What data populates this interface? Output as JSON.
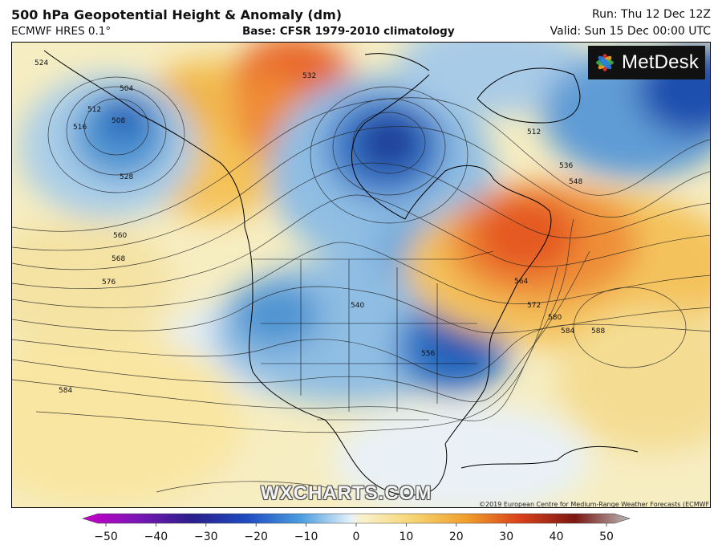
{
  "header": {
    "title": "500 hPa Geopotential Height & Anomaly (dm)",
    "model": "ECMWF HRES 0.1°",
    "base": "Base: CFSR 1979-2010 climatology",
    "run": "Run: Thu 12 Dec 12Z",
    "valid": "Valid: Sun 15 Dec 00:00 UTC"
  },
  "branding": {
    "logo_text": "MetDesk",
    "watermark": "WXCHARTS.COM",
    "copyright": "©2019 European Centre for Medium-Range Weather Forecasts (ECMWF)"
  },
  "contour_labels": [
    "524",
    "504",
    "508",
    "512",
    "516",
    "528",
    "532",
    "512",
    "536",
    "548",
    "560",
    "568",
    "576",
    "540",
    "556",
    "564",
    "572",
    "580",
    "584",
    "588",
    "584"
  ],
  "colorbar": {
    "tick_labels": [
      "−50",
      "−40",
      "−30",
      "−20",
      "−10",
      "0",
      "10",
      "20",
      "30",
      "40",
      "50"
    ],
    "colors": [
      "#c800c8",
      "#7a17b4",
      "#2a1f8c",
      "#1f4cc0",
      "#4d9ee0",
      "#cfe6f6",
      "#f7e9a6",
      "#f2b233",
      "#e0521c",
      "#8a1a14",
      "#a8a8a8"
    ]
  }
}
